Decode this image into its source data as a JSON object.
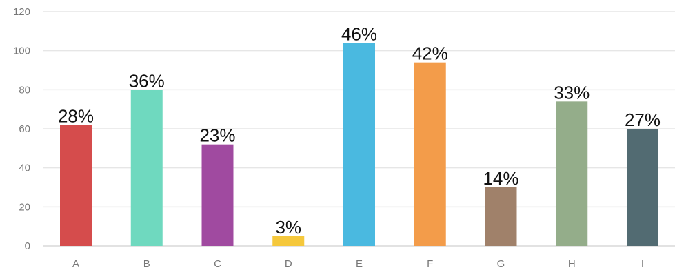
{
  "chart_data": {
    "type": "bar",
    "categories": [
      "A",
      "B",
      "C",
      "D",
      "E",
      "F",
      "G",
      "H",
      "I"
    ],
    "values": [
      62,
      80,
      52,
      5,
      104,
      94,
      30,
      74,
      60
    ],
    "data_labels": [
      "28%",
      "36%",
      "23%",
      "3%",
      "46%",
      "42%",
      "14%",
      "33%",
      "27%"
    ],
    "colors": [
      "#d54c4c",
      "#6fd9bf",
      "#a04aa0",
      "#f5c83c",
      "#4ab9e0",
      "#f39c4a",
      "#a0816a",
      "#94ad8a",
      "#526b72"
    ],
    "y_ticks": [
      "0",
      "20",
      "40",
      "60",
      "80",
      "100",
      "120"
    ],
    "ylim": [
      0,
      120
    ],
    "title": "",
    "xlabel": "",
    "ylabel": "",
    "grid": true,
    "legend": "none"
  }
}
